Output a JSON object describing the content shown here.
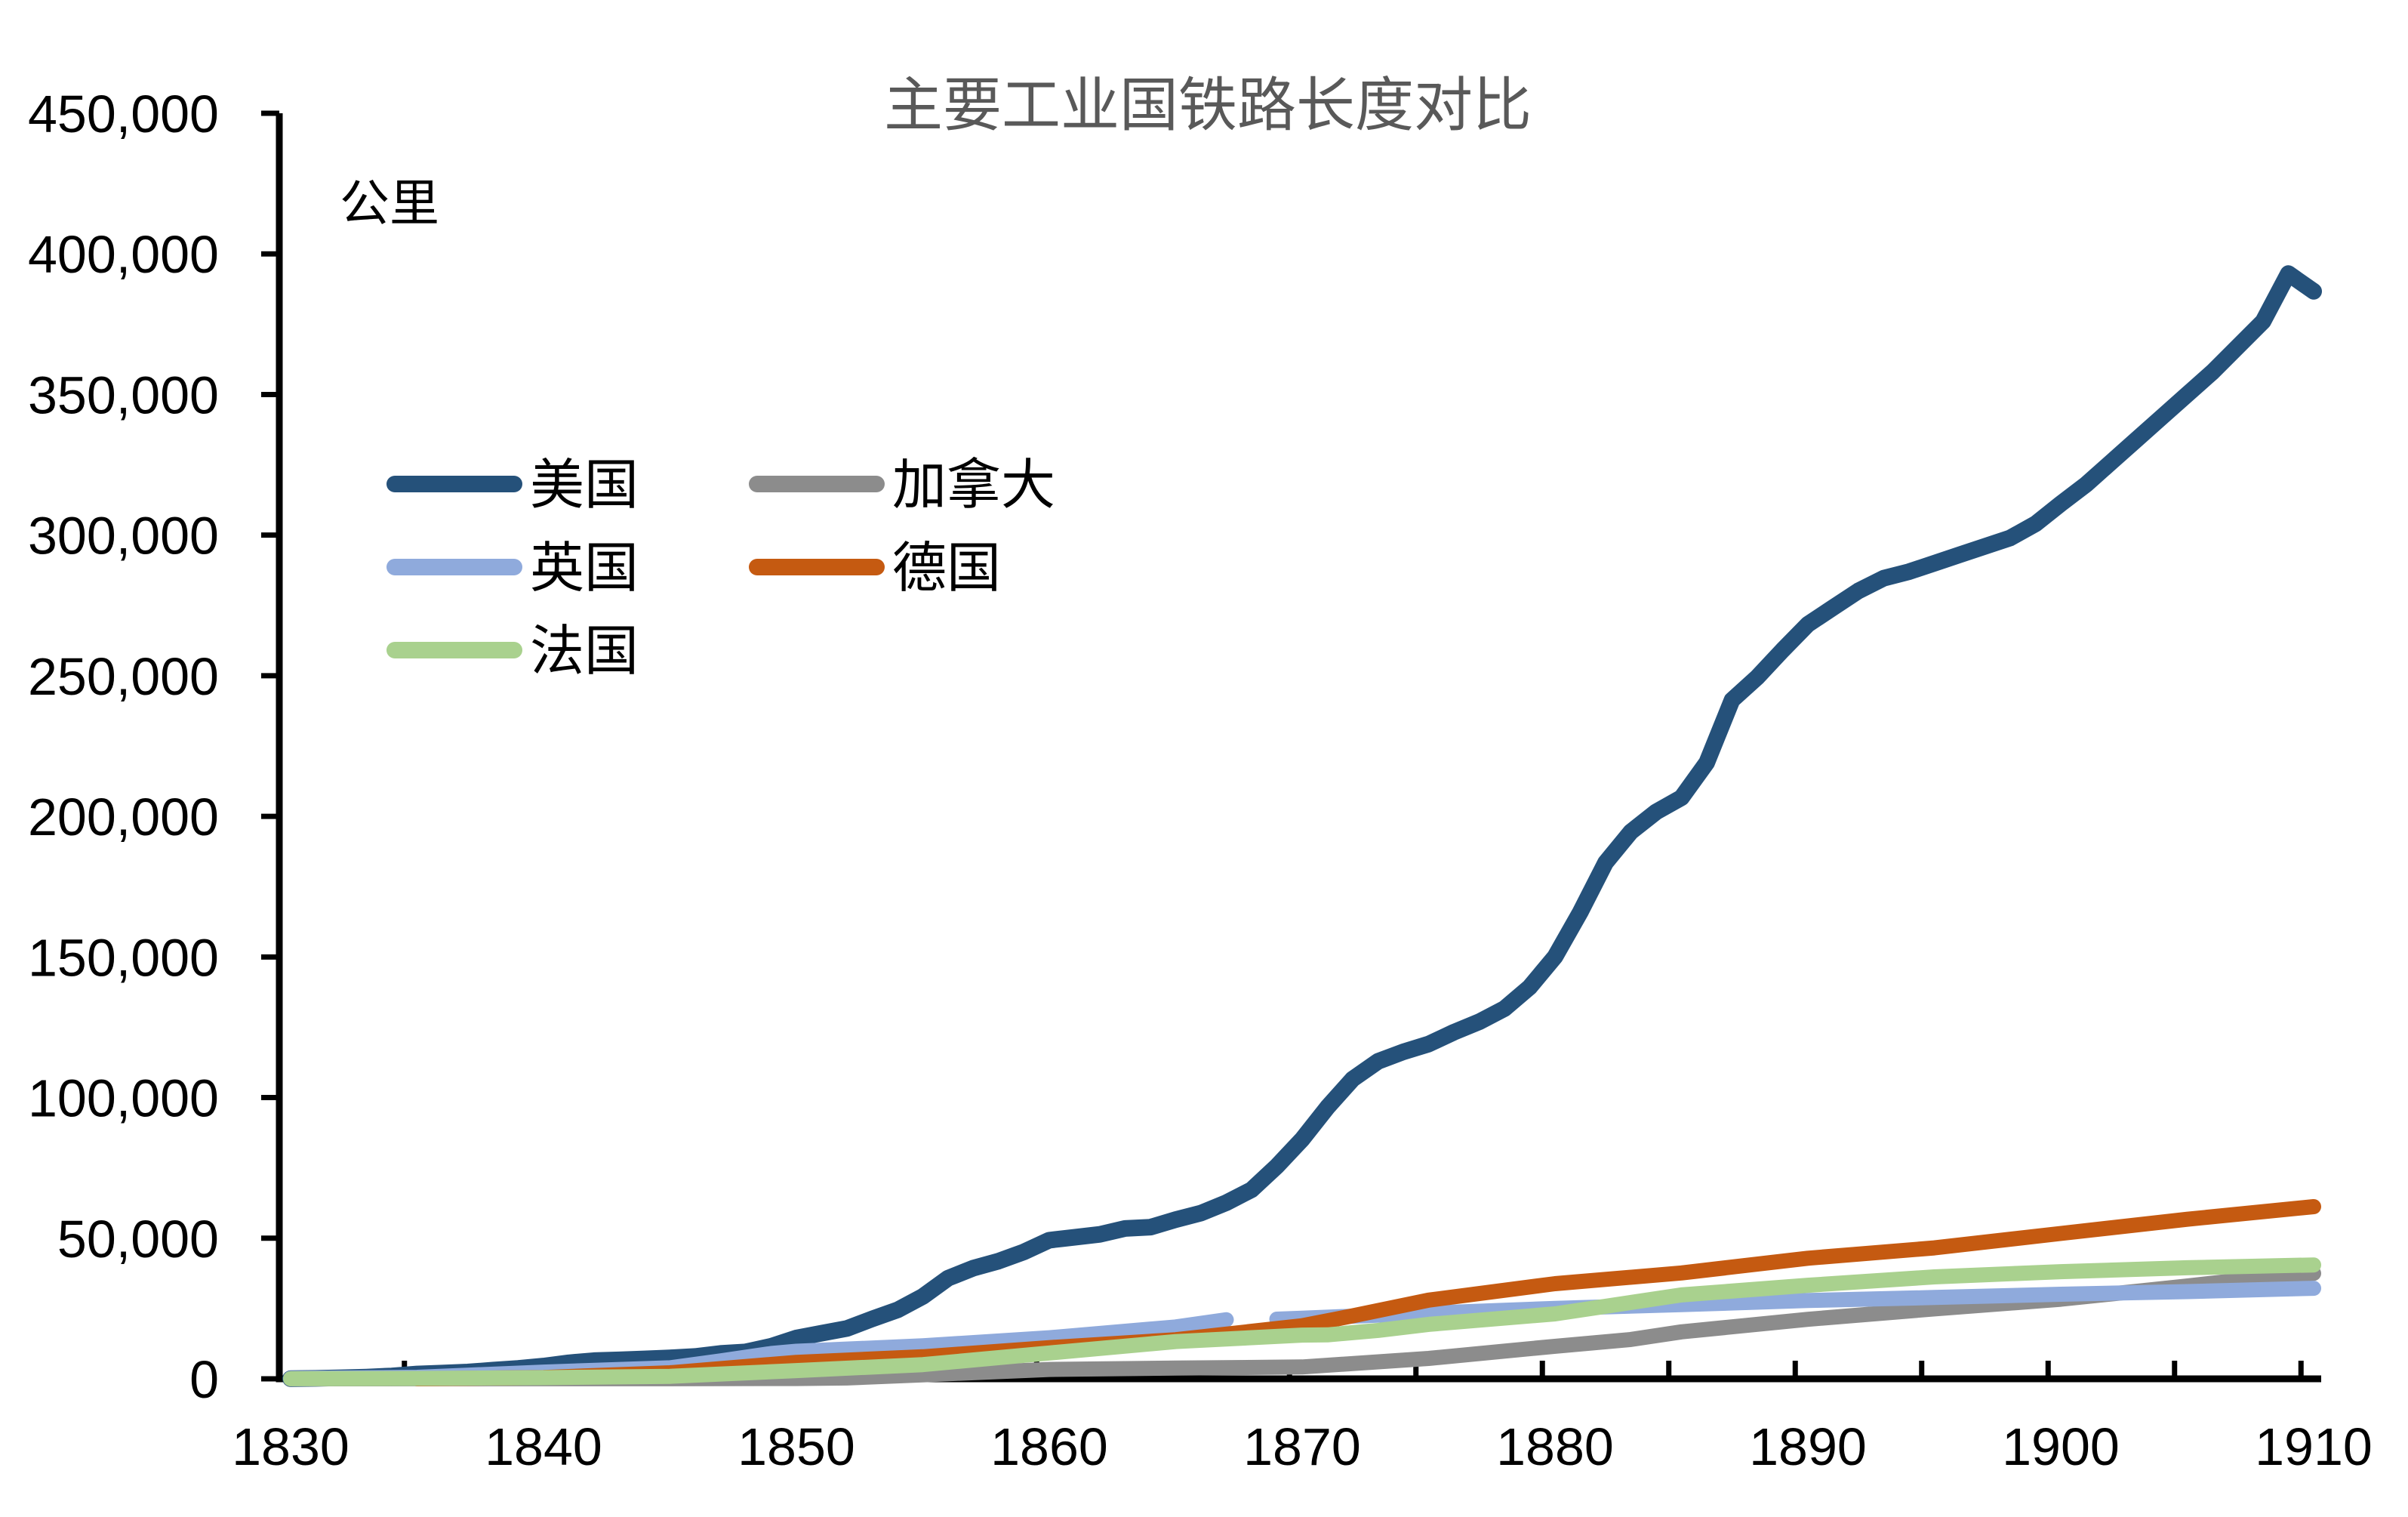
{
  "chart_data": {
    "type": "line",
    "title": "主要工业国铁路长度对比",
    "ylabel": "公里",
    "xlabel": "",
    "xlim": [
      1830,
      1910
    ],
    "ylim": [
      0,
      450000
    ],
    "y_tick_step": 50000,
    "y_tick_labels": [
      "0",
      "50,000",
      "100,000",
      "150,000",
      "200,000",
      "250,000",
      "300,000",
      "350,000",
      "400,000",
      "450,000"
    ],
    "x_tick_labels": [
      1830,
      1840,
      1850,
      1860,
      1870,
      1880,
      1890,
      1900,
      1910
    ],
    "x_boundary_tick_start": 1834.5,
    "x_boundary_tick_end": 1909.5,
    "x_boundary_tick_interval": 5,
    "grid": false,
    "legend_position": "inside-upper-left",
    "legend_columns": [
      [
        "usa",
        "uk",
        "france"
      ],
      [
        "canada",
        "germany"
      ]
    ],
    "axis_color": "#000000",
    "title_color": "#595959",
    "series": [
      {
        "id": "usa",
        "name": "美国",
        "color": "#25517A",
        "line_width": 22,
        "segments": [
          [
            [
              1830,
              64
            ],
            [
              1831,
              150
            ],
            [
              1832,
              370
            ],
            [
              1833,
              610
            ],
            [
              1834,
              1020
            ],
            [
              1835,
              1710
            ],
            [
              1836,
              2050
            ],
            [
              1837,
              2410
            ],
            [
              1838,
              3080
            ],
            [
              1839,
              3700
            ],
            [
              1840,
              4530
            ],
            [
              1841,
              5680
            ],
            [
              1842,
              6480
            ],
            [
              1843,
              6750
            ],
            [
              1844,
              7090
            ],
            [
              1845,
              7460
            ],
            [
              1846,
              7950
            ],
            [
              1847,
              9020
            ],
            [
              1848,
              9580
            ],
            [
              1849,
              11570
            ],
            [
              1850,
              14520
            ],
            [
              1851,
              16220
            ],
            [
              1852,
              17900
            ],
            [
              1853,
              21310
            ],
            [
              1854,
              24500
            ],
            [
              1855,
              29300
            ],
            [
              1856,
              35800
            ],
            [
              1857,
              39370
            ],
            [
              1858,
              41860
            ],
            [
              1859,
              45130
            ],
            [
              1860,
              49290
            ],
            [
              1861,
              50320
            ],
            [
              1862,
              51350
            ],
            [
              1863,
              53450
            ],
            [
              1864,
              53910
            ],
            [
              1865,
              56600
            ],
            [
              1866,
              58930
            ],
            [
              1867,
              62600
            ],
            [
              1868,
              67220
            ],
            [
              1869,
              75610
            ],
            [
              1870,
              85170
            ],
            [
              1871,
              96550
            ],
            [
              1872,
              106580
            ],
            [
              1873,
              112870
            ],
            [
              1874,
              116250
            ],
            [
              1875,
              119030
            ],
            [
              1876,
              123250
            ],
            [
              1877,
              126950
            ],
            [
              1878,
              131640
            ],
            [
              1879,
              139300
            ],
            [
              1880,
              150090
            ],
            [
              1881,
              165920
            ],
            [
              1882,
              183540
            ],
            [
              1883,
              194490
            ],
            [
              1884,
              201600
            ],
            [
              1885,
              206630
            ],
            [
              1886,
              219090
            ],
            [
              1887,
              241340
            ],
            [
              1888,
              249480
            ],
            [
              1889,
              259090
            ],
            [
              1890,
              268280
            ],
            [
              1891,
              274240
            ],
            [
              1892,
              280170
            ],
            [
              1893,
              284700
            ],
            [
              1894,
              287000
            ],
            [
              1895,
              290000
            ],
            [
              1896,
              293000
            ],
            [
              1897,
              296000
            ],
            [
              1898,
              299000
            ],
            [
              1899,
              304000
            ],
            [
              1900,
              311160
            ],
            [
              1901,
              318000
            ],
            [
              1902,
              326000
            ],
            [
              1903,
              334000
            ],
            [
              1904,
              342000
            ],
            [
              1905,
              350000
            ],
            [
              1906,
              358000
            ],
            [
              1907,
              367000
            ],
            [
              1908,
              376000
            ],
            [
              1909,
              393000
            ],
            [
              1910,
              386700
            ]
          ]
        ]
      },
      {
        "id": "canada",
        "name": "加拿大",
        "color": "#8C8C8C",
        "line_width": 20,
        "segments": [
          [
            [
              1830,
              0
            ],
            [
              1836,
              26
            ],
            [
              1840,
              26
            ],
            [
              1845,
              26
            ],
            [
              1850,
              106
            ],
            [
              1852,
              300
            ],
            [
              1855,
              1410
            ],
            [
              1860,
              3320
            ],
            [
              1865,
              3820
            ],
            [
              1870,
              4210
            ],
            [
              1875,
              7260
            ],
            [
              1880,
              11580
            ],
            [
              1883,
              14000
            ],
            [
              1885,
              16690
            ],
            [
              1890,
              21150
            ],
            [
              1895,
              24850
            ],
            [
              1900,
              28300
            ],
            [
              1905,
              33000
            ],
            [
              1908,
              36000
            ],
            [
              1910,
              37500
            ]
          ]
        ]
      },
      {
        "id": "uk",
        "name": "英国",
        "color": "#8FAADC",
        "line_width": 20,
        "segments": [
          [
            [
              1830,
              157
            ],
            [
              1835,
              544
            ],
            [
              1840,
              2390
            ],
            [
              1845,
              3930
            ],
            [
              1847,
              6350
            ],
            [
              1849,
              9000
            ],
            [
              1850,
              9800
            ],
            [
              1855,
              11740
            ],
            [
              1860,
              14600
            ],
            [
              1865,
              18440
            ],
            [
              1867,
              21000
            ]
          ],
          [
            [
              1869,
              21200
            ],
            [
              1870,
              21560
            ],
            [
              1875,
              23370
            ],
            [
              1880,
              25060
            ],
            [
              1885,
              26360
            ],
            [
              1890,
              27830
            ],
            [
              1895,
              28910
            ],
            [
              1900,
              30080
            ],
            [
              1905,
              31010
            ],
            [
              1910,
              32180
            ]
          ]
        ]
      },
      {
        "id": "germany",
        "name": "德国",
        "color": "#C55A11",
        "line_width": 20,
        "segments": [
          [
            [
              1835,
              6
            ],
            [
              1840,
              470
            ],
            [
              1845,
              2140
            ],
            [
              1850,
              5860
            ],
            [
              1855,
              7830
            ],
            [
              1860,
              11090
            ],
            [
              1865,
              13900
            ],
            [
              1870,
              18880
            ],
            [
              1872,
              22400
            ],
            [
              1875,
              27970
            ],
            [
              1880,
              33840
            ],
            [
              1885,
              37650
            ],
            [
              1890,
              42870
            ],
            [
              1895,
              46560
            ],
            [
              1900,
              51680
            ],
            [
              1905,
              56740
            ],
            [
              1910,
              61210
            ]
          ]
        ]
      },
      {
        "id": "france",
        "name": "法国",
        "color": "#A9D18E",
        "line_width": 20,
        "segments": [
          [
            [
              1830,
              31
            ],
            [
              1835,
              141
            ],
            [
              1840,
              410
            ],
            [
              1845,
              875
            ],
            [
              1850,
              2915
            ],
            [
              1855,
              5040
            ],
            [
              1860,
              9170
            ],
            [
              1865,
              13230
            ],
            [
              1870,
              15540
            ],
            [
              1871,
              15630
            ],
            [
              1873,
              17200
            ],
            [
              1875,
              19360
            ],
            [
              1880,
              23090
            ],
            [
              1885,
              29840
            ],
            [
              1890,
              33280
            ],
            [
              1895,
              36240
            ],
            [
              1900,
              38110
            ],
            [
              1905,
              39500
            ],
            [
              1910,
              40480
            ]
          ]
        ]
      }
    ]
  }
}
